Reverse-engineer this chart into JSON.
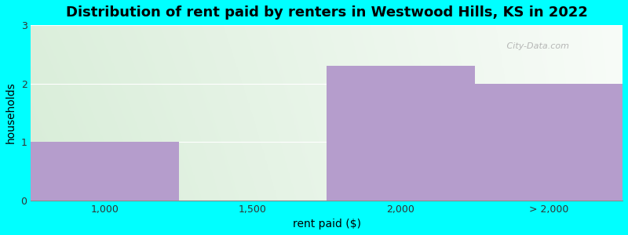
{
  "title": "Distribution of rent paid by renters in Westwood Hills, KS in 2022",
  "xlabel": "rent paid ($)",
  "ylabel": "households",
  "xtick_labels": [
    "1,000",
    "1,500",
    "2,000",
    "> 2,000"
  ],
  "bar_values": [
    1,
    0,
    2.3,
    2.0
  ],
  "bar_color": "#b59dcc",
  "ylim": [
    0,
    3
  ],
  "yticks": [
    0,
    1,
    2,
    3
  ],
  "background_color": "#00ffff",
  "title_fontsize": 13,
  "axis_label_fontsize": 10,
  "watermark": " City-Data.com"
}
